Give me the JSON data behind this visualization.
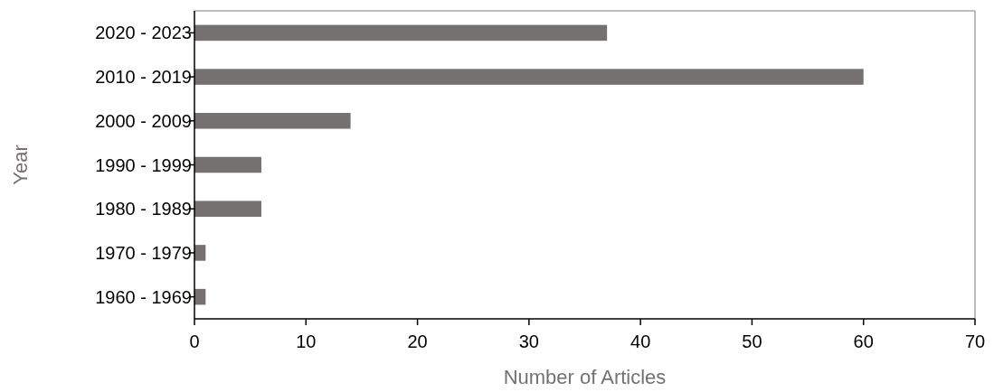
{
  "chart_data": {
    "type": "bar",
    "orientation": "horizontal",
    "xlabel": "Number of Articles",
    "ylabel": "Year",
    "categories": [
      "2020 - 2023",
      "2010 - 2019",
      "2000 - 2009",
      "1990 - 1999",
      "1980 - 1989",
      "1970 - 1979",
      "1960 - 1969"
    ],
    "values": [
      37,
      60,
      14,
      6,
      6,
      1,
      1
    ],
    "color": "#767171",
    "xlim": [
      0,
      70
    ],
    "xticks": [
      0,
      10,
      20,
      30,
      40,
      50,
      60,
      70
    ],
    "grid": false
  }
}
